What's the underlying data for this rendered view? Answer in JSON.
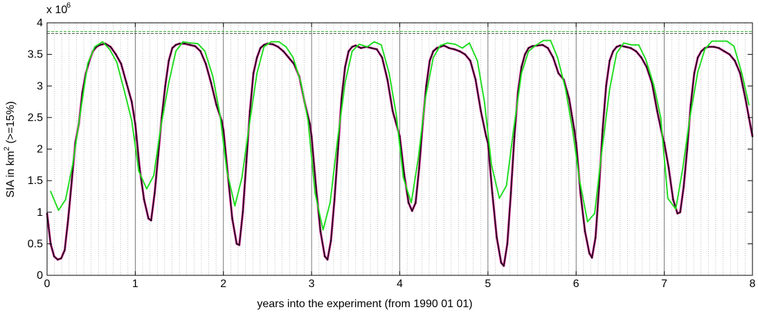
{
  "chart_data": {
    "type": "line",
    "xlabel": "years into the experiment (from 1990 01 01)",
    "ylabel": {
      "base": "SIA in km",
      "superscript": "2",
      "suffix": " (>=15%)"
    },
    "multiplier": {
      "base": "x 10",
      "exponent": "6"
    },
    "xlim": [
      0,
      8
    ],
    "ylim": [
      0,
      4
    ],
    "x_ticks": [
      "0",
      "1",
      "2",
      "3",
      "4",
      "5",
      "6",
      "7",
      "8"
    ],
    "y_ticks": [
      "0",
      "0.5",
      "1",
      "1.5",
      "2",
      "2.5",
      "3",
      "3.5",
      "4"
    ],
    "grid": {
      "year_lines": true,
      "month_lines": true
    },
    "reference_lines": [
      {
        "y": 3.86,
        "color": "#22aa22"
      },
      {
        "y": 3.83,
        "color": "#555555"
      }
    ],
    "colors": {
      "daily_black": "#111111",
      "daily_magenta": "#e0209a",
      "monthly_green": "#22dd22"
    },
    "series": [
      {
        "key": "daily_black",
        "x": [
          0,
          0.04,
          0.08,
          0.12,
          0.16,
          0.2,
          0.24,
          0.28,
          0.32,
          0.36,
          0.4,
          0.44,
          0.48,
          0.52,
          0.56,
          0.6,
          0.66,
          0.72,
          0.78,
          0.84,
          0.9,
          0.96,
          1.0,
          1.05,
          1.1,
          1.15,
          1.18,
          1.22,
          1.26,
          1.3,
          1.34,
          1.38,
          1.42,
          1.46,
          1.5,
          1.56,
          1.62,
          1.68,
          1.74,
          1.8,
          1.86,
          1.92,
          1.98,
          2.0,
          2.05,
          2.1,
          2.15,
          2.18,
          2.22,
          2.26,
          2.3,
          2.34,
          2.38,
          2.42,
          2.46,
          2.5,
          2.56,
          2.62,
          2.68,
          2.74,
          2.8,
          2.86,
          2.92,
          2.98,
          3.0,
          3.05,
          3.1,
          3.15,
          3.18,
          3.22,
          3.26,
          3.3,
          3.34,
          3.38,
          3.42,
          3.46,
          3.5,
          3.56,
          3.62,
          3.68,
          3.74,
          3.8,
          3.86,
          3.92,
          3.98,
          4.0,
          4.05,
          4.1,
          4.14,
          4.18,
          4.22,
          4.26,
          4.3,
          4.34,
          4.38,
          4.42,
          4.46,
          4.5,
          4.56,
          4.62,
          4.68,
          4.74,
          4.8,
          4.86,
          4.92,
          4.98,
          5.0,
          5.05,
          5.1,
          5.15,
          5.18,
          5.22,
          5.26,
          5.3,
          5.34,
          5.38,
          5.42,
          5.46,
          5.5,
          5.56,
          5.62,
          5.68,
          5.74,
          5.8,
          5.86,
          5.92,
          5.98,
          6.0,
          6.05,
          6.1,
          6.15,
          6.18,
          6.22,
          6.26,
          6.3,
          6.34,
          6.38,
          6.42,
          6.46,
          6.5,
          6.56,
          6.62,
          6.68,
          6.74,
          6.8,
          6.86,
          6.92,
          6.98,
          7.0,
          7.05,
          7.1,
          7.15,
          7.18,
          7.22,
          7.26,
          7.3,
          7.34,
          7.38,
          7.42,
          7.46,
          7.5,
          7.56,
          7.62,
          7.68,
          7.74,
          7.8,
          7.86,
          7.92,
          8.0
        ],
        "y": [
          0.98,
          0.5,
          0.3,
          0.25,
          0.27,
          0.4,
          0.9,
          1.5,
          2.1,
          2.4,
          2.9,
          3.2,
          3.4,
          3.55,
          3.62,
          3.65,
          3.67,
          3.62,
          3.5,
          3.35,
          3.05,
          2.75,
          2.4,
          1.7,
          1.2,
          0.9,
          0.87,
          1.3,
          1.9,
          2.5,
          3.0,
          3.4,
          3.6,
          3.65,
          3.67,
          3.67,
          3.65,
          3.63,
          3.55,
          3.35,
          3.05,
          2.7,
          2.45,
          2.3,
          1.6,
          0.9,
          0.5,
          0.48,
          1.0,
          1.8,
          2.6,
          3.2,
          3.45,
          3.6,
          3.65,
          3.67,
          3.66,
          3.62,
          3.55,
          3.45,
          3.35,
          3.15,
          2.75,
          2.4,
          2.2,
          1.4,
          0.7,
          0.3,
          0.25,
          0.55,
          1.2,
          2.0,
          2.8,
          3.3,
          3.55,
          3.62,
          3.64,
          3.6,
          3.62,
          3.6,
          3.58,
          3.45,
          3.1,
          2.6,
          2.3,
          2.2,
          1.6,
          1.15,
          1.02,
          1.15,
          1.7,
          2.4,
          3.0,
          3.4,
          3.55,
          3.6,
          3.62,
          3.64,
          3.6,
          3.58,
          3.55,
          3.5,
          3.4,
          3.1,
          2.6,
          2.2,
          2.1,
          1.3,
          0.6,
          0.2,
          0.15,
          0.5,
          1.3,
          2.2,
          2.9,
          3.3,
          3.5,
          3.6,
          3.63,
          3.64,
          3.65,
          3.6,
          3.45,
          3.2,
          3.1,
          2.8,
          2.3,
          2.1,
          1.3,
          0.7,
          0.35,
          0.28,
          0.6,
          1.4,
          2.3,
          3.0,
          3.4,
          3.55,
          3.62,
          3.64,
          3.62,
          3.6,
          3.55,
          3.45,
          3.3,
          3.05,
          2.6,
          2.2,
          2.1,
          1.7,
          1.2,
          0.98,
          1.0,
          1.4,
          2.0,
          2.7,
          3.2,
          3.45,
          3.55,
          3.6,
          3.62,
          3.62,
          3.6,
          3.55,
          3.5,
          3.4,
          3.2,
          2.8,
          2.2
        ]
      },
      {
        "key": "monthly_green",
        "x": [
          0.04,
          0.13,
          0.21,
          0.29,
          0.38,
          0.46,
          0.54,
          0.63,
          0.71,
          0.79,
          0.88,
          0.96,
          1.04,
          1.13,
          1.21,
          1.29,
          1.38,
          1.46,
          1.54,
          1.63,
          1.71,
          1.79,
          1.88,
          1.96,
          2.04,
          2.13,
          2.21,
          2.29,
          2.38,
          2.46,
          2.54,
          2.63,
          2.71,
          2.79,
          2.88,
          2.96,
          3.04,
          3.13,
          3.21,
          3.29,
          3.38,
          3.46,
          3.54,
          3.63,
          3.71,
          3.79,
          3.88,
          3.96,
          4.04,
          4.13,
          4.21,
          4.29,
          4.38,
          4.46,
          4.54,
          4.63,
          4.71,
          4.79,
          4.88,
          4.96,
          5.04,
          5.13,
          5.21,
          5.29,
          5.38,
          5.46,
          5.54,
          5.63,
          5.71,
          5.79,
          5.88,
          5.96,
          6.04,
          6.13,
          6.21,
          6.29,
          6.38,
          6.46,
          6.54,
          6.63,
          6.71,
          6.79,
          6.88,
          6.96,
          7.04,
          7.13,
          7.21,
          7.29,
          7.38,
          7.46,
          7.54,
          7.63,
          7.71,
          7.79,
          7.88,
          7.96
        ],
        "y": [
          1.33,
          1.03,
          1.2,
          1.75,
          2.6,
          3.35,
          3.62,
          3.7,
          3.58,
          3.38,
          2.9,
          2.45,
          1.65,
          1.37,
          1.58,
          2.35,
          3.05,
          3.55,
          3.7,
          3.68,
          3.67,
          3.55,
          3.15,
          2.55,
          1.65,
          1.1,
          1.55,
          2.35,
          3.2,
          3.62,
          3.7,
          3.7,
          3.62,
          3.45,
          3.05,
          2.45,
          1.3,
          0.72,
          1.15,
          2.1,
          3.05,
          3.55,
          3.66,
          3.62,
          3.7,
          3.65,
          3.2,
          2.55,
          1.55,
          1.15,
          1.85,
          2.8,
          3.45,
          3.64,
          3.68,
          3.66,
          3.6,
          3.68,
          3.4,
          2.75,
          1.75,
          1.22,
          1.42,
          2.3,
          3.2,
          3.55,
          3.64,
          3.72,
          3.72,
          3.45,
          2.95,
          2.3,
          1.5,
          0.85,
          0.98,
          1.95,
          2.95,
          3.52,
          3.68,
          3.65,
          3.65,
          3.42,
          3.02,
          2.5,
          1.22,
          1.05,
          1.7,
          2.5,
          3.22,
          3.58,
          3.71,
          3.71,
          3.71,
          3.63,
          3.2,
          2.7
        ]
      }
    ]
  }
}
